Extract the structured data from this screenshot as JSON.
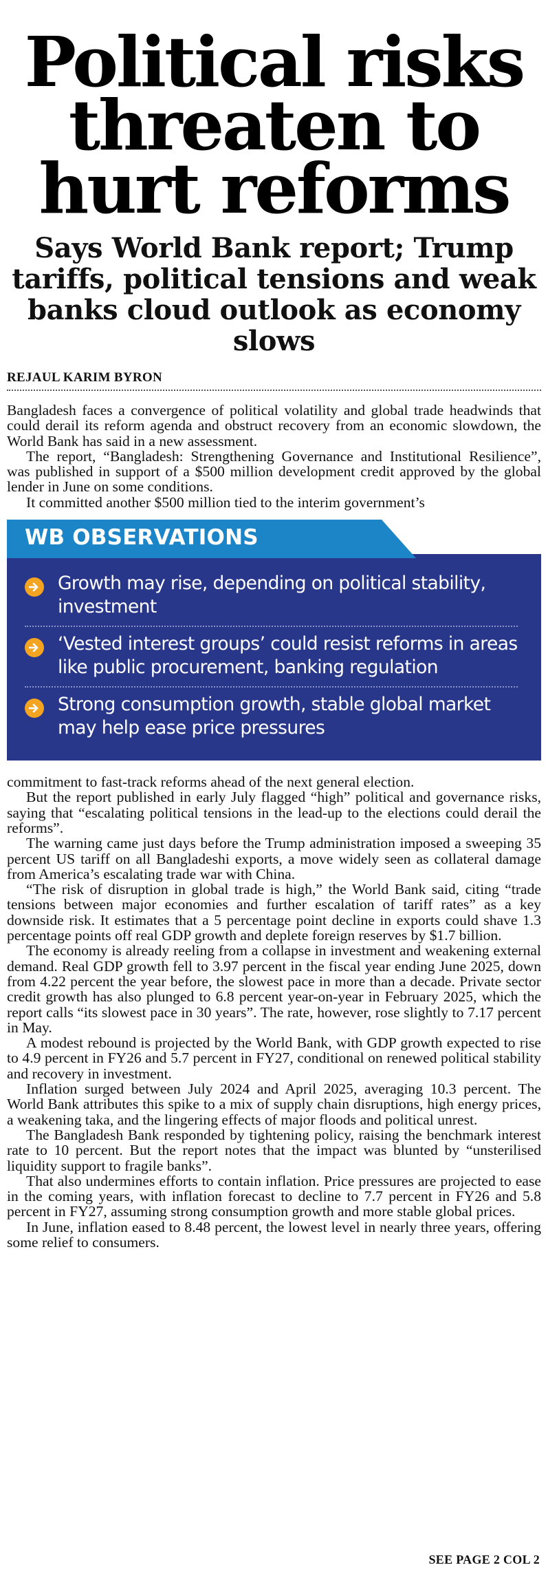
{
  "headline": "Political risks threaten to hurt reforms",
  "subheadline": "Says World Bank report; Trump tariffs, political tensions and weak banks cloud outlook as economy slows",
  "byline": "REJAUL KARIM BYRON",
  "intro_paragraphs": [
    "Bangladesh faces a convergence of political volatility and global trade headwinds that could derail its reform agenda and obstruct recovery from an economic slowdown, the World Bank has said in a new assessment.",
    "The report, “Bangladesh: Strengthening Governance and Institutional Resilience”, was published in support of a $500 million development credit approved by the global lender in June on some conditions.",
    "It committed another $500 million tied to the interim government’s"
  ],
  "observations_box": {
    "title": "WB OBSERVATIONS",
    "colors": {
      "panel": "#29378a",
      "tab": "#1b85c8",
      "bullet": "#f3a420"
    },
    "bullet_icon": "arrow-right-circle",
    "items": [
      "Growth may rise, depending on political stability, investment",
      "‘Vested interest groups’ could resist reforms in areas like public procurement, banking regulation",
      "Strong consumption growth, stable global market may help ease price pressures"
    ]
  },
  "continued_paragraphs": [
    "commitment to fast-track reforms ahead of the next general election.",
    "But the report published in early July flagged “high” political and governance risks, saying that “escalating political tensions in the lead-up to the elections could derail the reforms”.",
    "The warning came just days before the Trump administration imposed a sweeping 35 percent US tariff on all Bangladeshi exports, a move widely seen as collateral damage from America’s escalating trade war with China.",
    "“The risk of disruption in global trade is high,” the World Bank said, citing “trade tensions between major economies and further escalation of tariff rates” as a key downside risk. It estimates that a 5 percentage point decline in exports could shave 1.3 percentage points off real GDP growth and deplete foreign reserves by $1.7 billion.",
    "The economy is already reeling from a collapse in investment and weakening external demand. Real GDP growth fell to 3.97 percent in the fiscal year ending June 2025, down from 4.22 percent the year before, the slowest pace in more than a decade. Private sector credit growth has also plunged to 6.8 percent year-on-year in February 2025, which the report calls “its slowest pace in 30 years”. The rate, however, rose slightly to 7.17 percent in May.",
    "A modest rebound is projected by the World Bank, with GDP growth expected to rise to 4.9 percent in FY26 and 5.7 percent in FY27, conditional on renewed political stability and recovery in investment.",
    "Inflation surged between July 2024 and April 2025, averaging 10.3 percent. The World Bank attributes this spike to a mix of supply chain disruptions, high energy prices, a weakening taka, and the lingering effects of major floods and political unrest.",
    "The Bangladesh Bank responded by tightening policy, raising the benchmark interest rate to 10 percent. But the report notes that the impact was blunted by “unsterilised liquidity support to fragile banks”.",
    "That also undermines efforts to contain inflation. Price pressures are projected to ease in the coming years, with inflation forecast to decline to 7.7 percent in FY26 and 5.8 percent in FY27, assuming strong consumption growth and more stable global prices.",
    "In June, inflation eased to 8.48 percent, the lowest level in nearly three years, offering some relief to consumers."
  ],
  "jump_line": "SEE PAGE 2 COL 2"
}
